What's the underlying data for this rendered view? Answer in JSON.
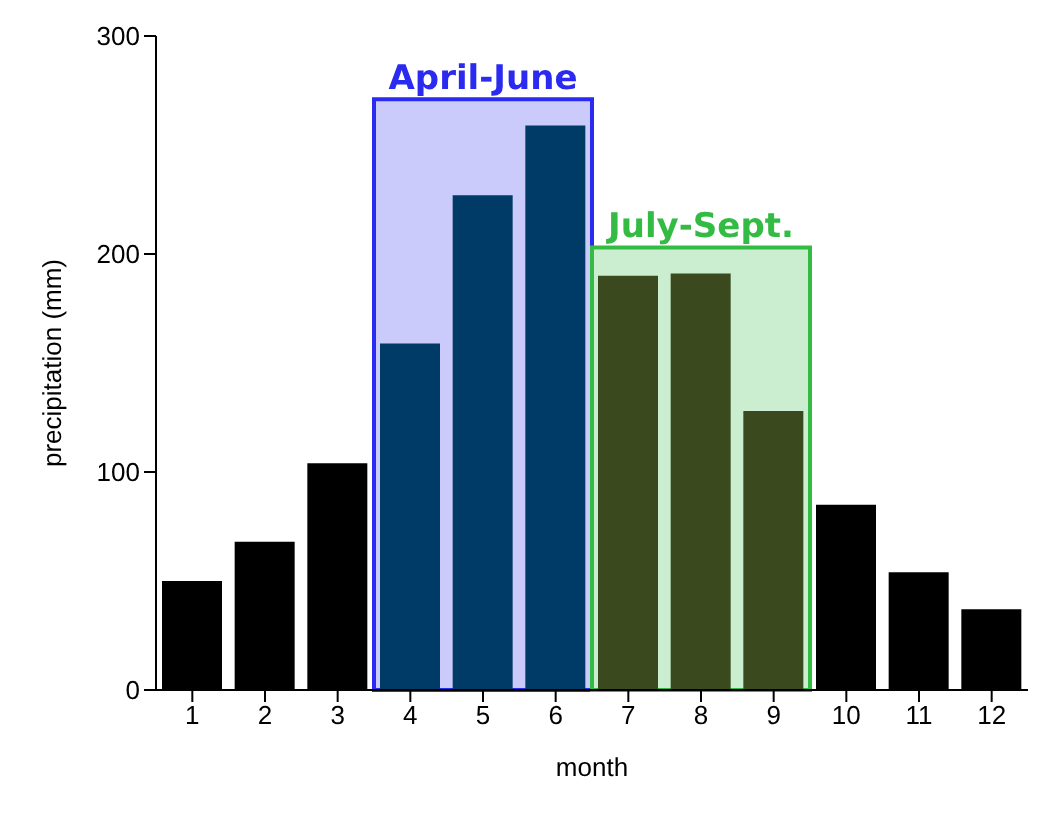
{
  "chart_data": {
    "type": "bar",
    "xlabel": "month",
    "ylabel": "precipitation (mm)",
    "x": [
      1,
      2,
      3,
      4,
      5,
      6,
      7,
      8,
      9,
      10,
      11,
      12
    ],
    "values": [
      50,
      68,
      104,
      159,
      227,
      259,
      190,
      191,
      128,
      85,
      54,
      37
    ],
    "colors": [
      "#000000",
      "#000000",
      "#000000",
      "#003a66",
      "#003a66",
      "#003a66",
      "#3a4a1e",
      "#3a4a1e",
      "#3a4a1e",
      "#000000",
      "#000000",
      "#000000"
    ],
    "xlim": [
      0.5,
      12.5
    ],
    "xticks": [
      1,
      2,
      3,
      4,
      5,
      6,
      7,
      8,
      9,
      10,
      11,
      12
    ],
    "ylim": [
      0,
      300
    ],
    "yticks": [
      0,
      100,
      200,
      300
    ],
    "grid": false,
    "bands": [
      {
        "axis": "x",
        "from": 3.5,
        "to": 6.5,
        "label": "April-June",
        "color": "#2a2af0"
      },
      {
        "axis": "x",
        "from": 6.5,
        "to": 9.5,
        "label": "July-Sept.",
        "color": "#33bb44"
      }
    ]
  }
}
